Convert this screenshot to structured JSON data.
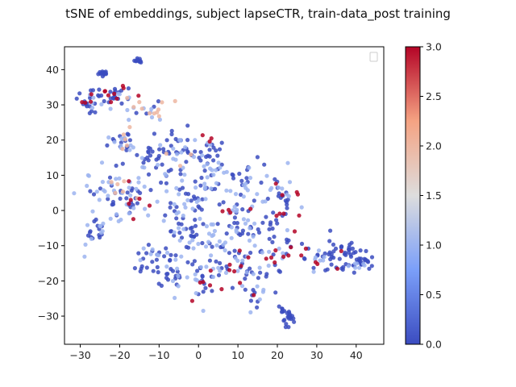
{
  "figure": {
    "title": "tSNE of embeddings, subject lapseCTR, train-data_post training"
  },
  "chart_data": {
    "type": "scatter",
    "title": "tSNE of embeddings, subject lapseCTR, train-data_post training",
    "xlabel": "",
    "ylabel": "",
    "xlim": [
      -34,
      47
    ],
    "ylim": [
      -38,
      46.5
    ],
    "xticks": [
      -30,
      -20,
      -10,
      0,
      10,
      20,
      30,
      40
    ],
    "yticks": [
      -30,
      -20,
      -10,
      0,
      10,
      20,
      30,
      40
    ],
    "legend": {
      "placement": "upper-right",
      "entries": []
    },
    "colorbar": {
      "label": "",
      "min": 0.0,
      "max": 3.0,
      "ticks": [
        0.0,
        0.5,
        1.0,
        1.5,
        2.0,
        2.5,
        3.0
      ],
      "tick_labels": [
        "0.0",
        "0.5",
        "1.0",
        "1.5",
        "2.0",
        "2.5",
        "3.0"
      ],
      "colormap": "coolwarm",
      "colors": {
        "low": "#3b4cc0",
        "mid": "#dddddd",
        "high": "#b40426"
      }
    },
    "point_style": {
      "opacity": 0.85
    },
    "clusters": [
      {
        "cx": -24.2,
        "cy": 39.0,
        "sx": 0.6,
        "sy": 0.5,
        "n": 14,
        "c": [
          0.0
        ]
      },
      {
        "cx": -15.3,
        "cy": 42.6,
        "sx": 0.6,
        "sy": 0.3,
        "n": 12,
        "c": [
          0.0
        ]
      },
      {
        "cx": -27.0,
        "cy": 31.5,
        "sx": 2.2,
        "sy": 1.6,
        "n": 34,
        "c": [
          0.0,
          0.0,
          0.0,
          3.0,
          1.0
        ]
      },
      {
        "cx": -20.5,
        "cy": 32.5,
        "sx": 2.0,
        "sy": 1.5,
        "n": 26,
        "c": [
          0.0,
          0.0,
          3.0,
          2.0,
          1.0
        ]
      },
      {
        "cx": -13.0,
        "cy": 28.0,
        "sx": 3.0,
        "sy": 1.6,
        "n": 22,
        "c": [
          2.0,
          2.0,
          1.0,
          0.0
        ]
      },
      {
        "cx": -19.0,
        "cy": 20.0,
        "sx": 2.2,
        "sy": 2.0,
        "n": 26,
        "c": [
          2.0,
          1.0,
          1.0,
          0.0
        ]
      },
      {
        "cx": -11.0,
        "cy": 15.0,
        "sx": 3.5,
        "sy": 3.0,
        "n": 38,
        "c": [
          0.0,
          0.0,
          1.0
        ]
      },
      {
        "cx": -5.0,
        "cy": 18.0,
        "sx": 2.2,
        "sy": 2.2,
        "n": 26,
        "c": [
          0.0,
          2.0,
          1.0,
          0.0
        ]
      },
      {
        "cx": 1.5,
        "cy": 16.5,
        "sx": 2.5,
        "sy": 3.2,
        "n": 30,
        "c": [
          0.0,
          0.0,
          3.0,
          1.0
        ]
      },
      {
        "cx": -23.0,
        "cy": 5.0,
        "sx": 4.0,
        "sy": 4.5,
        "n": 52,
        "c": [
          0.0,
          0.0,
          1.0,
          1.0,
          2.0
        ]
      },
      {
        "cx": -17.0,
        "cy": 2.0,
        "sx": 3.0,
        "sy": 3.0,
        "n": 28,
        "c": [
          0.0,
          0.0,
          1.0,
          3.0
        ]
      },
      {
        "cx": -27.0,
        "cy": -6.0,
        "sx": 1.8,
        "sy": 2.5,
        "n": 20,
        "c": [
          0.0,
          0.0,
          1.0
        ]
      },
      {
        "cx": -3.0,
        "cy": 4.0,
        "sx": 3.5,
        "sy": 3.0,
        "n": 34,
        "c": [
          0.0,
          1.0,
          0.0
        ]
      },
      {
        "cx": 4.0,
        "cy": 9.0,
        "sx": 3.0,
        "sy": 2.5,
        "n": 22,
        "c": [
          0.0,
          1.0
        ]
      },
      {
        "cx": 12.0,
        "cy": 8.0,
        "sx": 5.0,
        "sy": 3.0,
        "n": 42,
        "c": [
          0.0,
          0.0,
          1.0
        ]
      },
      {
        "cx": 22.0,
        "cy": 4.0,
        "sx": 2.5,
        "sy": 3.0,
        "n": 20,
        "c": [
          0.0,
          3.0,
          1.0,
          0.0
        ]
      },
      {
        "cx": 8.5,
        "cy": 0.0,
        "sx": 2.0,
        "sy": 1.0,
        "n": 10,
        "c": [
          3.0,
          0.0,
          1.0
        ]
      },
      {
        "cx": -5.0,
        "cy": -6.0,
        "sx": 3.5,
        "sy": 4.0,
        "n": 40,
        "c": [
          0.0,
          0.0,
          1.0
        ]
      },
      {
        "cx": -11.0,
        "cy": -14.0,
        "sx": 3.0,
        "sy": 2.5,
        "n": 30,
        "c": [
          0.0,
          0.0,
          1.0
        ]
      },
      {
        "cx": -6.0,
        "cy": -19.0,
        "sx": 2.5,
        "sy": 2.0,
        "n": 22,
        "c": [
          0.0,
          0.0,
          1.0
        ]
      },
      {
        "cx": 3.0,
        "cy": -8.0,
        "sx": 3.0,
        "sy": 3.5,
        "n": 28,
        "c": [
          0.0,
          1.0,
          0.0
        ]
      },
      {
        "cx": 2.0,
        "cy": -20.0,
        "sx": 2.5,
        "sy": 3.0,
        "n": 26,
        "c": [
          0.0,
          1.0,
          3.0,
          0.0
        ]
      },
      {
        "cx": 11.0,
        "cy": -6.0,
        "sx": 4.0,
        "sy": 3.0,
        "n": 40,
        "c": [
          0.0,
          0.0,
          1.0
        ]
      },
      {
        "cx": 11.0,
        "cy": -17.0,
        "sx": 3.5,
        "sy": 3.5,
        "n": 40,
        "c": [
          0.0,
          0.0,
          1.0,
          3.0
        ]
      },
      {
        "cx": 20.0,
        "cy": -12.0,
        "sx": 3.0,
        "sy": 3.5,
        "n": 30,
        "c": [
          0.0,
          1.0,
          0.0,
          3.0
        ]
      },
      {
        "cx": 21.0,
        "cy": -1.5,
        "sx": 2.0,
        "sy": 1.5,
        "n": 10,
        "c": [
          0.0,
          3.0
        ]
      },
      {
        "cx": 31.0,
        "cy": -13.0,
        "sx": 3.0,
        "sy": 2.0,
        "n": 28,
        "c": [
          0.0,
          0.0,
          1.0,
          3.0
        ]
      },
      {
        "cx": 36.5,
        "cy": -11.0,
        "sx": 2.0,
        "sy": 1.5,
        "n": 22,
        "c": [
          0.0
        ]
      },
      {
        "cx": 41.0,
        "cy": -14.5,
        "sx": 1.4,
        "sy": 1.2,
        "n": 26,
        "c": [
          0.0
        ]
      },
      {
        "cx": 39.0,
        "cy": -16.0,
        "sx": 2.0,
        "sy": 1.0,
        "n": 16,
        "c": [
          0.0,
          1.0
        ]
      },
      {
        "cx": 14.0,
        "cy": -25.0,
        "sx": 1.5,
        "sy": 1.5,
        "n": 10,
        "c": [
          0.0,
          1.0
        ]
      },
      {
        "cx": 23.0,
        "cy": -31.0,
        "sx": 1.0,
        "sy": 1.5,
        "n": 18,
        "c": [
          0.0
        ]
      },
      {
        "cx": 21.5,
        "cy": -28.5,
        "sx": 0.5,
        "sy": 0.5,
        "n": 6,
        "c": [
          0.0
        ]
      }
    ]
  }
}
